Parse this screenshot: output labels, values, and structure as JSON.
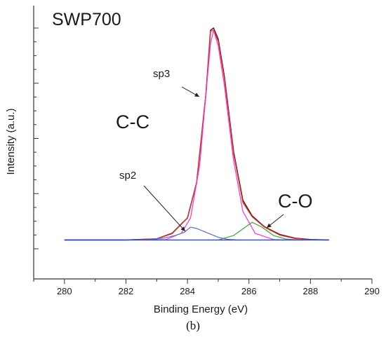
{
  "chart_data": {
    "type": "line",
    "title": "SWP700",
    "subtitle": "(b)",
    "xlabel": "Binding Energy (eV)",
    "ylabel": "Intensity (a.u.)",
    "xlim": [
      279,
      290
    ],
    "ylim": [
      0,
      1.1
    ],
    "x_ticks": [
      "280",
      "282",
      "284",
      "286",
      "288",
      "290"
    ],
    "y_ticks_labeled": false,
    "grid": false,
    "legend": "none",
    "annotations": [
      "sp3",
      "C-C",
      "sp2",
      "C-O"
    ],
    "colors": {
      "raw": "#6b1a12",
      "envelope": "#d23c3c",
      "sp3": "#ff33cc",
      "sp2": "#5c6bd6",
      "co": "#3aa63a",
      "baseline": "#3446c8",
      "axis": "#333333"
    },
    "series": [
      {
        "x": [
          280,
          282,
          283,
          283.5,
          284,
          284.3,
          284.6,
          284.75,
          284.85,
          285,
          285.2,
          285.5,
          285.8,
          286.1,
          286.5,
          287,
          287.5,
          288,
          288.6
        ],
        "values": [
          0.04,
          0.04,
          0.045,
          0.07,
          0.14,
          0.3,
          0.7,
          0.99,
          1.0,
          0.95,
          0.78,
          0.44,
          0.22,
          0.15,
          0.1,
          0.065,
          0.048,
          0.042,
          0.04
        ],
        "color": "#6b1a12"
      },
      {
        "x": [
          280,
          282,
          283,
          283.5,
          284,
          284.3,
          284.6,
          284.75,
          284.85,
          285,
          285.2,
          285.5,
          285.8,
          286.1,
          286.5,
          287,
          287.5,
          288,
          288.6
        ],
        "values": [
          0.04,
          0.04,
          0.045,
          0.068,
          0.14,
          0.3,
          0.7,
          0.985,
          0.99,
          0.94,
          0.77,
          0.43,
          0.21,
          0.145,
          0.098,
          0.062,
          0.046,
          0.041,
          0.04
        ],
        "color": "#d23c3c"
      },
      {
        "x": [
          282.5,
          283.3,
          283.8,
          284.1,
          284.4,
          284.6,
          284.75,
          284.85,
          285,
          285.2,
          285.5,
          285.8,
          286.2,
          286.8,
          287.3
        ],
        "values": [
          0.04,
          0.042,
          0.07,
          0.14,
          0.38,
          0.7,
          0.93,
          0.99,
          0.92,
          0.74,
          0.4,
          0.17,
          0.07,
          0.042,
          0.04
        ],
        "color": "#ff33cc"
      },
      {
        "x": [
          282.5,
          283.2,
          283.6,
          283.9,
          284.1,
          284.3,
          284.6,
          285,
          285.3,
          285.6
        ],
        "values": [
          0.04,
          0.048,
          0.06,
          0.075,
          0.098,
          0.092,
          0.075,
          0.052,
          0.043,
          0.04
        ],
        "color": "#5c6bd6"
      },
      {
        "x": [
          285,
          285.5,
          285.8,
          286.1,
          286.4,
          286.8,
          287.2,
          287.6
        ],
        "values": [
          0.04,
          0.06,
          0.09,
          0.12,
          0.1,
          0.06,
          0.044,
          0.04
        ],
        "color": "#3aa63a"
      },
      {
        "x": [
          280,
          288.6
        ],
        "values": [
          0.04,
          0.04
        ],
        "color": "#3446c8"
      }
    ]
  }
}
